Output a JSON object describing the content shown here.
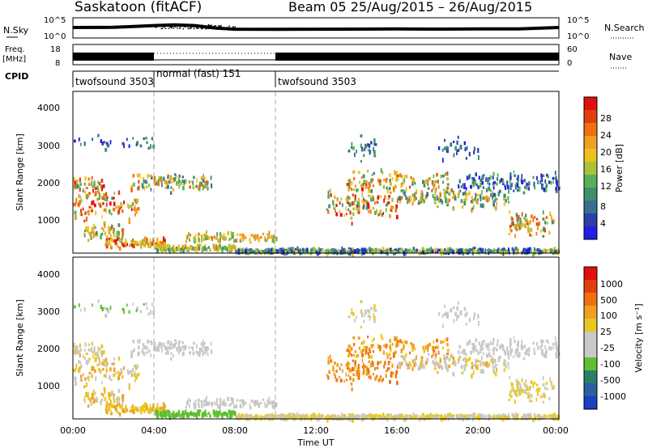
{
  "header": {
    "title": "Saskatoon (fitACF)",
    "beam_info": "Beam 05  25/Aug/2015 – 26/Aug/2015"
  },
  "strip_labels": {
    "nsky": "N.Sky",
    "freq": "Freq.",
    "freq_unit": "[MHz]",
    "cpid": "CPID",
    "nsearch": "N.Search",
    "nave": "Nave"
  },
  "cpid_segments": [
    {
      "label": "twofsound 3503",
      "start_hr": 0,
      "end_hr": 4
    },
    {
      "label": "normal (fast) 151",
      "start_hr": 4,
      "end_hr": 10
    },
    {
      "label": "twofsound 3503",
      "start_hr": 10,
      "end_hr": 24
    }
  ],
  "colors": {
    "power_scale": [
      "#1f1fe6",
      "#2a3fa8",
      "#3a6f93",
      "#3e8f6a",
      "#58b05a",
      "#a8c23a",
      "#f0c020",
      "#f0a020",
      "#f07010",
      "#e04010",
      "#e01010"
    ],
    "velocity_scale": [
      "#1a3fbf",
      "#2a5fa0",
      "#2a7f6a",
      "#5fbf2f",
      "#c8c8c4",
      "#c8c8c4",
      "#e8c820",
      "#f0a020",
      "#f07010",
      "#e04010",
      "#e01010"
    ]
  },
  "power_colorbar": {
    "label": "Power [dB]",
    "ticks": [
      "28",
      "24",
      "20",
      "16",
      "12",
      "8",
      "4"
    ]
  },
  "velocity_colorbar": {
    "label": "Velocity  [m s⁻¹]",
    "ticks": [
      "1000",
      "500",
      "100",
      "25",
      "-25",
      "-100",
      "-500",
      "-1000"
    ]
  },
  "chart_data": [
    {
      "type": "line",
      "title": "N.Sky / N.Search",
      "xlabel": "",
      "ylabel": "N.Sky",
      "yscale": "log",
      "y_ticks_left": [
        "10^5",
        "10^0"
      ],
      "y_ticks_right": [
        "10^5",
        "10^0"
      ],
      "xlim": [
        0,
        24
      ],
      "series": [
        {
          "name": "N.Sky",
          "x": [
            0,
            1,
            2,
            3,
            4,
            5,
            6,
            7,
            8,
            10,
            12,
            14,
            16,
            18,
            20,
            22,
            24
          ],
          "values": [
            400,
            420,
            440,
            700,
            1200,
            1800,
            1200,
            300,
            150,
            140,
            150,
            160,
            170,
            160,
            170,
            180,
            400
          ]
        }
      ]
    },
    {
      "type": "line",
      "title": "Freq. / Nave",
      "xlabel": "",
      "ylabel": "Freq. [MHz]",
      "y_ticks_left": [
        "18",
        "8"
      ],
      "y_ticks_right": [
        "60",
        "0"
      ],
      "xlim": [
        0,
        24
      ],
      "series": [
        {
          "name": "Nave",
          "x": [
            0,
            4,
            4,
            10,
            10,
            24
          ],
          "values": [
            28,
            28,
            46,
            46,
            28,
            28
          ]
        }
      ]
    },
    {
      "type": "heatmap",
      "title": "Power",
      "xlabel": "",
      "ylabel": "Slant Range [km]",
      "ylim": [
        180,
        4500
      ],
      "y_ticks": [
        "1000",
        "2000",
        "3000",
        "4000"
      ],
      "xlim": [
        0,
        24
      ],
      "x_ticks": [
        "00:00",
        "04:00",
        "08:00",
        "12:00",
        "16:00",
        "20:00",
        "00:00"
      ],
      "colorbar": {
        "label": "Power [dB]",
        "range": [
          0,
          30
        ]
      }
    },
    {
      "type": "heatmap",
      "title": "Velocity",
      "xlabel": "Time UT",
      "ylabel": "Slant Range [km]",
      "ylim": [
        180,
        4500
      ],
      "y_ticks": [
        "1000",
        "2000",
        "3000",
        "4000"
      ],
      "xlim": [
        0,
        24
      ],
      "x_ticks": [
        "00:00",
        "04:00",
        "08:00",
        "12:00",
        "16:00",
        "20:00",
        "00:00"
      ],
      "colorbar": {
        "label": "Velocity [m s⁻¹]",
        "range": [
          -1000,
          1000
        ]
      }
    }
  ]
}
